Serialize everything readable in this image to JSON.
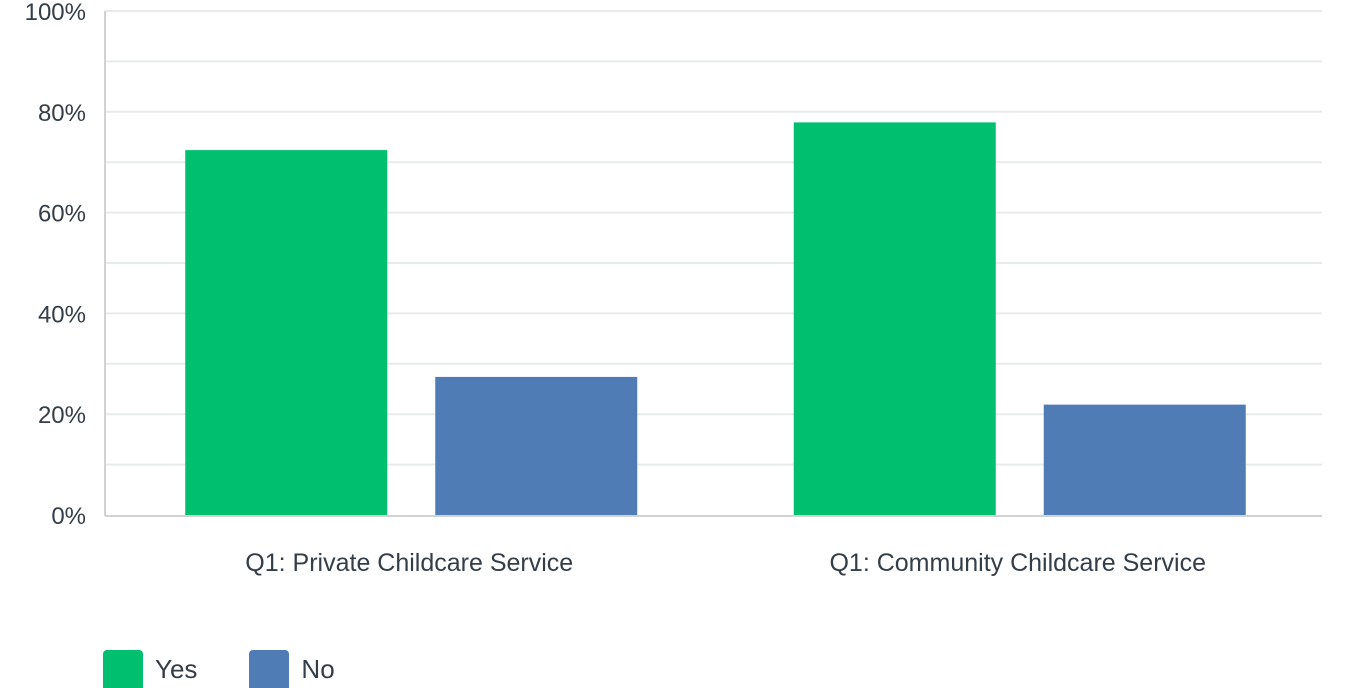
{
  "chart_data": {
    "type": "bar",
    "categories": [
      "Q1: Private Childcare Service",
      "Q1: Community Childcare Service"
    ],
    "series": [
      {
        "name": "Yes",
        "color": "#00bf6f",
        "values": [
          72.4,
          77.9
        ]
      },
      {
        "name": "No",
        "color": "#507cb6",
        "values": [
          27.4,
          21.9
        ]
      }
    ],
    "ylim": [
      0,
      100
    ],
    "yticks": [
      0,
      20,
      40,
      60,
      80,
      100
    ],
    "ytick_labels": [
      "0%",
      "20%",
      "40%",
      "60%",
      "80%",
      "100%"
    ],
    "grid": true,
    "legend_position": "bottom-left"
  },
  "legend": {
    "items": [
      {
        "label": "Yes",
        "color": "#00bf6f"
      },
      {
        "label": "No",
        "color": "#507cb6"
      }
    ]
  }
}
